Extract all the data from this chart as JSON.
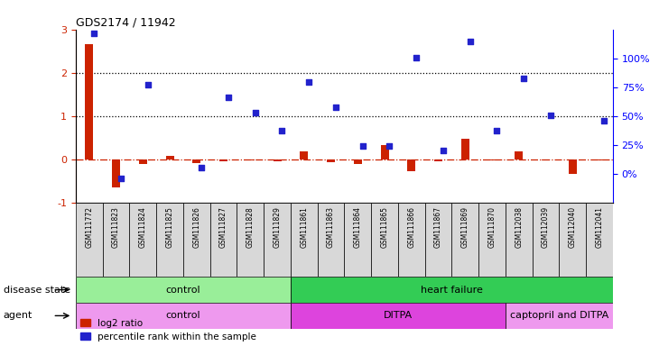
{
  "title": "GDS2174 / 11942",
  "samples": [
    "GSM111772",
    "GSM111823",
    "GSM111824",
    "GSM111825",
    "GSM111826",
    "GSM111827",
    "GSM111828",
    "GSM111829",
    "GSM111861",
    "GSM111863",
    "GSM111864",
    "GSM111865",
    "GSM111866",
    "GSM111867",
    "GSM111869",
    "GSM111870",
    "GSM112038",
    "GSM112039",
    "GSM112040",
    "GSM112041"
  ],
  "log2_ratio": [
    2.65,
    -0.65,
    -0.12,
    0.07,
    -0.1,
    -0.05,
    -0.02,
    -0.05,
    0.18,
    -0.08,
    -0.12,
    0.32,
    -0.28,
    -0.05,
    0.48,
    -0.03,
    0.17,
    -0.03,
    -0.35,
    -0.02
  ],
  "percentile_rank": [
    2.9,
    -0.45,
    1.72,
    null,
    -0.2,
    1.42,
    1.07,
    0.65,
    1.78,
    1.2,
    0.3,
    0.3,
    2.35,
    0.2,
    2.72,
    0.65,
    1.87,
    1.02,
    null,
    0.88
  ],
  "disease_state_groups": [
    {
      "label": "control",
      "start": 0,
      "end": 8,
      "color": "#99ee99"
    },
    {
      "label": "heart failure",
      "start": 8,
      "end": 20,
      "color": "#33cc55"
    }
  ],
  "agent_groups": [
    {
      "label": "control",
      "start": 0,
      "end": 8,
      "color": "#ee99ee"
    },
    {
      "label": "DITPA",
      "start": 8,
      "end": 16,
      "color": "#dd44dd"
    },
    {
      "label": "captopril and DITPA",
      "start": 16,
      "end": 20,
      "color": "#ee99ee"
    }
  ],
  "ylim_left": [
    -1.0,
    3.0
  ],
  "yticks_left": [
    -1,
    0,
    1,
    2,
    3
  ],
  "right_tick_labels": [
    "0%",
    "25%",
    "50%",
    "75%",
    "100%"
  ],
  "right_tick_positions": [
    -0.333,
    0.333,
    1.0,
    1.667,
    2.333
  ],
  "log2_color": "#cc2200",
  "percentile_color": "#2222cc",
  "bar_width": 0.3,
  "dotted_lines": [
    1.0,
    2.0
  ],
  "legend_log2": "log2 ratio",
  "legend_pct": "percentile rank within the sample",
  "left_label_disease": "disease state",
  "left_label_agent": "agent"
}
